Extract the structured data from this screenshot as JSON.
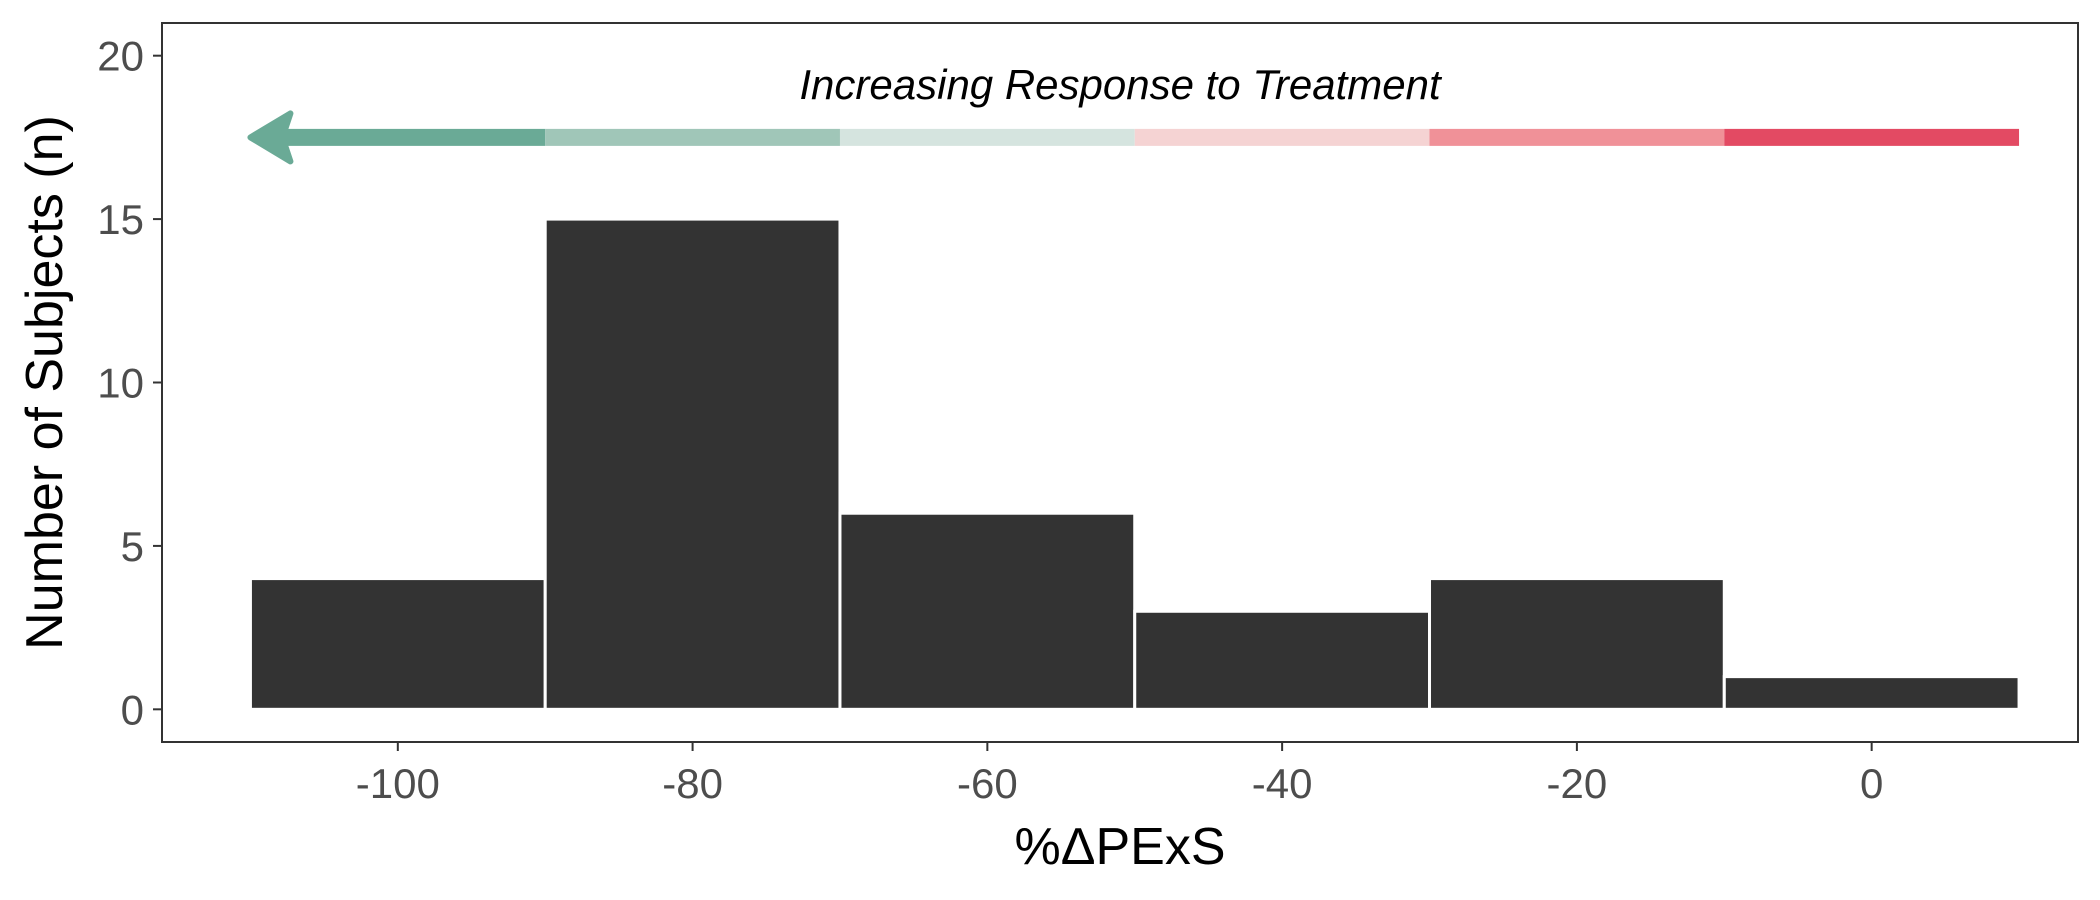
{
  "chart_data": {
    "type": "bar",
    "subtype": "histogram",
    "bins": [
      {
        "x_start": -110,
        "x_end": -90,
        "count": 4
      },
      {
        "x_start": -90,
        "x_end": -70,
        "count": 15
      },
      {
        "x_start": -70,
        "x_end": -50,
        "count": 6
      },
      {
        "x_start": -50,
        "x_end": -30,
        "count": 3
      },
      {
        "x_start": -30,
        "x_end": -10,
        "count": 4
      },
      {
        "x_start": -10,
        "x_end": 10,
        "count": 1
      }
    ],
    "xlabel": "%ΔPExS",
    "ylabel": "Number of Subjects (n)",
    "xlim": [
      -116,
      14
    ],
    "ylim": [
      -1,
      21
    ],
    "x_ticks": [
      -100,
      -80,
      -60,
      -40,
      -20,
      0
    ],
    "x_tick_labels": [
      "-100",
      "-80",
      "-60",
      "-40",
      "-20",
      "0"
    ],
    "y_ticks": [
      0,
      5,
      10,
      15,
      20
    ],
    "y_tick_labels": [
      "0",
      "5",
      "10",
      "15",
      "20"
    ],
    "bar_color": "#333333",
    "grid": false,
    "annotation": {
      "text": "Increasing Response to Treatment",
      "arrow_y": 17.5,
      "arrow_x_from": 10,
      "arrow_x_to": -110,
      "segments": [
        {
          "x_start": -110,
          "x_end": -90,
          "color": "#6aaa96"
        },
        {
          "x_start": -90,
          "x_end": -70,
          "color": "#a0c6b8"
        },
        {
          "x_start": -70,
          "x_end": -50,
          "color": "#d5e4df"
        },
        {
          "x_start": -50,
          "x_end": -30,
          "color": "#f5d3d3"
        },
        {
          "x_start": -30,
          "x_end": -10,
          "color": "#f09198"
        },
        {
          "x_start": -10,
          "x_end": 10,
          "color": "#e34a63"
        }
      ]
    }
  }
}
